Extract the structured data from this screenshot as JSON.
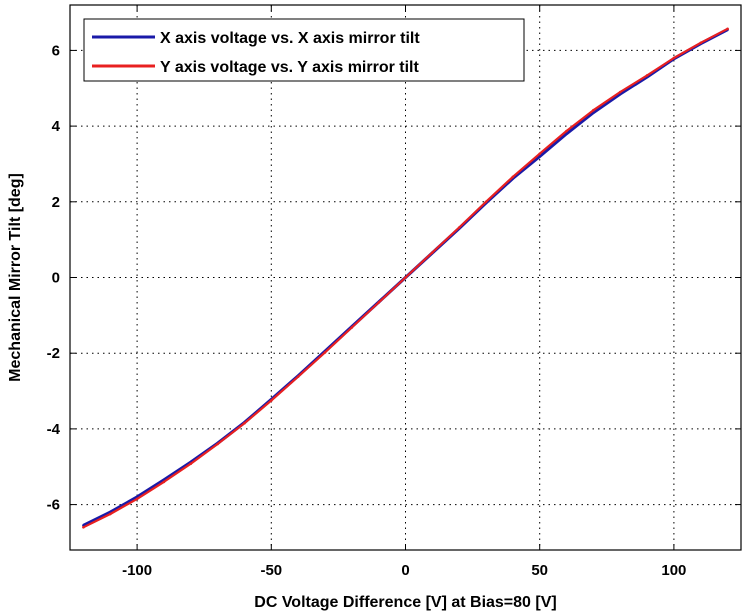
{
  "chart_data": {
    "type": "line",
    "title": "",
    "xlabel": "DC Voltage Difference [V] at Bias=80 [V]",
    "ylabel": "Mechanical Mirror Tilt [deg]",
    "xlim": [
      -125,
      125
    ],
    "ylim": [
      -7.2,
      7.2
    ],
    "xticks": [
      -100,
      -50,
      0,
      50,
      100
    ],
    "yticks": [
      -6,
      -4,
      -2,
      0,
      2,
      4,
      6
    ],
    "xtick_labels": [
      "-100",
      "-50",
      "0",
      "50",
      "100"
    ],
    "ytick_labels": [
      "-6",
      "-4",
      "-2",
      "0",
      "2",
      "4",
      "6"
    ],
    "grid": true,
    "legend_position": "top-left",
    "series": [
      {
        "name": "X axis voltage vs. X axis mirror tilt",
        "color": "#1a1aa8",
        "x": [
          -120,
          -110,
          -100,
          -90,
          -80,
          -70,
          -60,
          -50,
          -40,
          -30,
          -20,
          -10,
          0,
          10,
          20,
          30,
          40,
          50,
          60,
          70,
          80,
          90,
          100,
          110,
          120
        ],
        "y": [
          -6.55,
          -6.2,
          -5.8,
          -5.35,
          -4.88,
          -4.38,
          -3.83,
          -3.22,
          -2.6,
          -1.95,
          -1.3,
          -0.65,
          0.0,
          0.65,
          1.3,
          1.97,
          2.62,
          3.2,
          3.8,
          4.36,
          4.85,
          5.3,
          5.78,
          6.18,
          6.55
        ]
      },
      {
        "name": "Y axis voltage vs. Y axis mirror tilt",
        "color": "#e82020",
        "x": [
          -120,
          -110,
          -100,
          -90,
          -80,
          -70,
          -60,
          -50,
          -40,
          -30,
          -20,
          -10,
          0,
          10,
          20,
          30,
          40,
          50,
          60,
          70,
          80,
          90,
          100,
          110,
          120
        ],
        "y": [
          -6.6,
          -6.25,
          -5.85,
          -5.4,
          -4.92,
          -4.4,
          -3.85,
          -3.25,
          -2.62,
          -1.98,
          -1.32,
          -0.66,
          0.0,
          0.66,
          1.32,
          2.0,
          2.66,
          3.27,
          3.87,
          4.42,
          4.9,
          5.34,
          5.8,
          6.2,
          6.57
        ]
      }
    ]
  }
}
